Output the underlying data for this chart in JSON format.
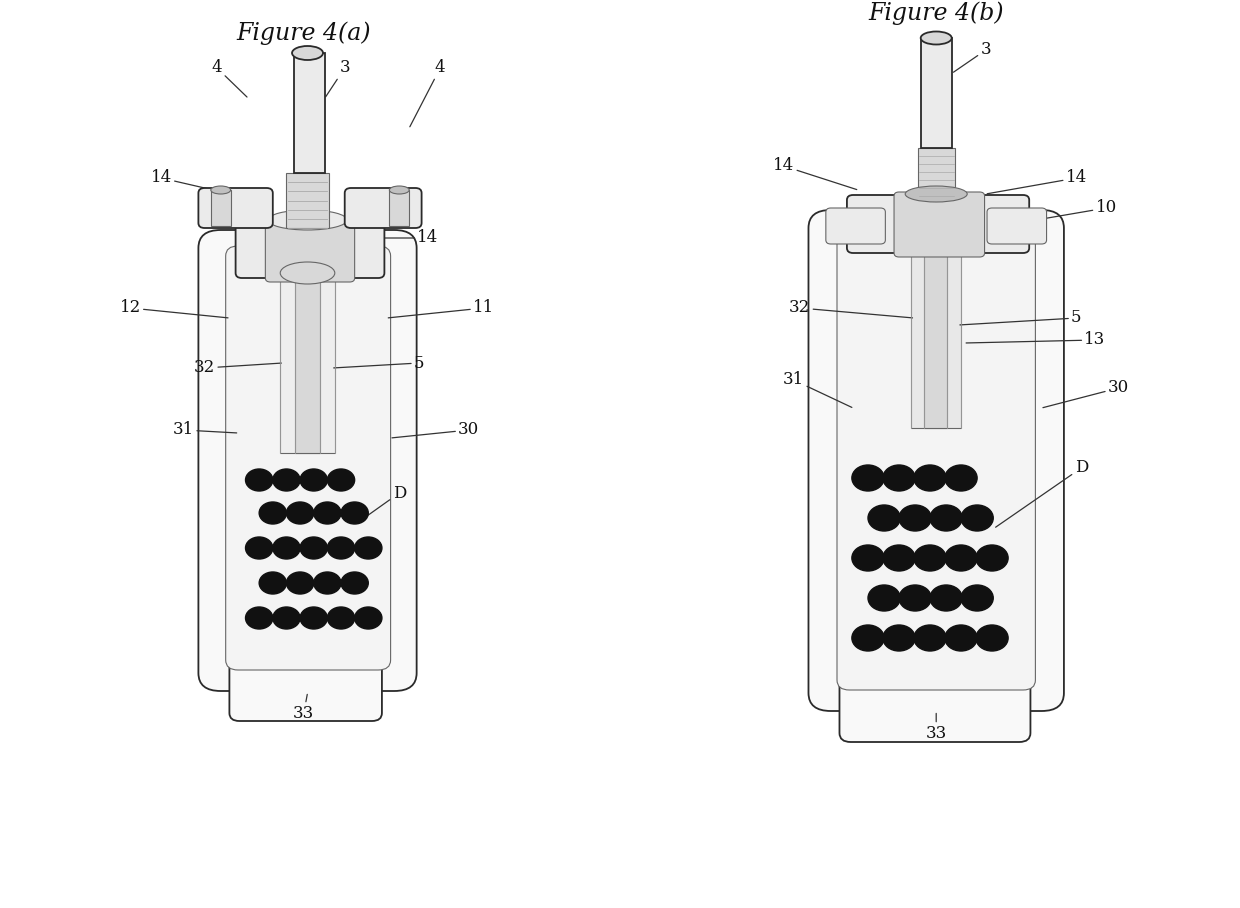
{
  "fig_a_title": "Figure 4(a)",
  "fig_b_title": "Figure 4(b)",
  "bg_color": "#ffffff",
  "lc": "#2a2a2a",
  "lc_l": "#666666",
  "lc_ll": "#aaaaaa",
  "dot_color": "#111111",
  "fill_white": "#f9f9f9",
  "fill_light": "#ebebeb",
  "fill_mid": "#d8d8d8",
  "fill_dark": "#c0c0c0",
  "fill_darker": "#a0a0a0"
}
